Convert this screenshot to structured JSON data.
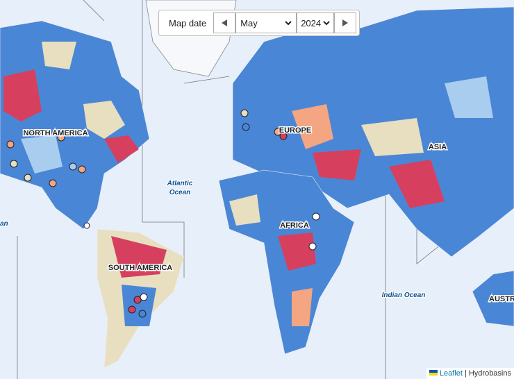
{
  "controls": {
    "label": "Map date",
    "month": "May",
    "year": "2024"
  },
  "regions": {
    "north_america": "NORTH AMERICA",
    "europe": "EUROPE",
    "asia": "ASIA",
    "africa": "AFRICA",
    "south_america": "SOUTH AMERICA",
    "australia": "AUSTR"
  },
  "oceans": {
    "atlantic": [
      "Atlantic",
      "Ocean"
    ],
    "indian": "Indian Ocean",
    "pacific": "an"
  },
  "attribution": {
    "leaflet": "Leaflet",
    "source": "| Hydrobasins"
  }
}
